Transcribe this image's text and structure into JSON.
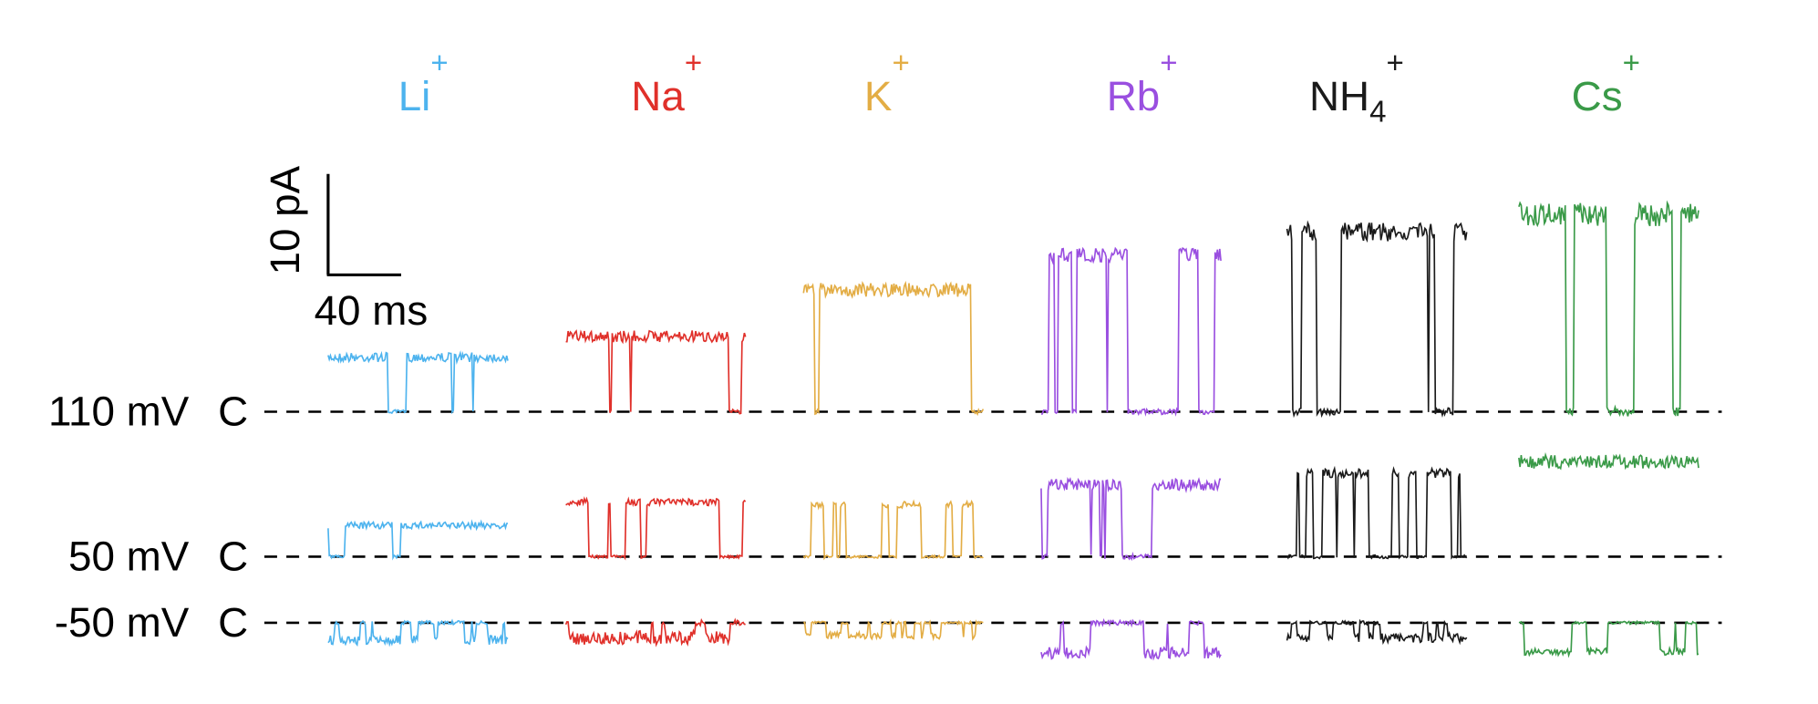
{
  "ions": [
    {
      "symbol": "Li",
      "superscript": "+",
      "color": "#4db3ee"
    },
    {
      "symbol": "Na",
      "superscript": "+",
      "color": "#e0302a"
    },
    {
      "symbol": "K",
      "superscript": "+",
      "color": "#e3ad45"
    },
    {
      "symbol": "Rb",
      "superscript": "+",
      "color": "#9a4fe0"
    },
    {
      "symbol": "NH",
      "subscript": "4",
      "superscript": "+",
      "color": "#1a1a1a"
    },
    {
      "symbol": "Cs",
      "superscript": "+",
      "color": "#3a9a48"
    }
  ],
  "voltages": [
    {
      "label": "110 mV",
      "closed": "C"
    },
    {
      "label": "50 mV",
      "closed": "C"
    },
    {
      "label": "-50 mV",
      "closed": "C"
    }
  ],
  "scale_bar": {
    "current": "10 pA",
    "time": "40 ms"
  }
}
